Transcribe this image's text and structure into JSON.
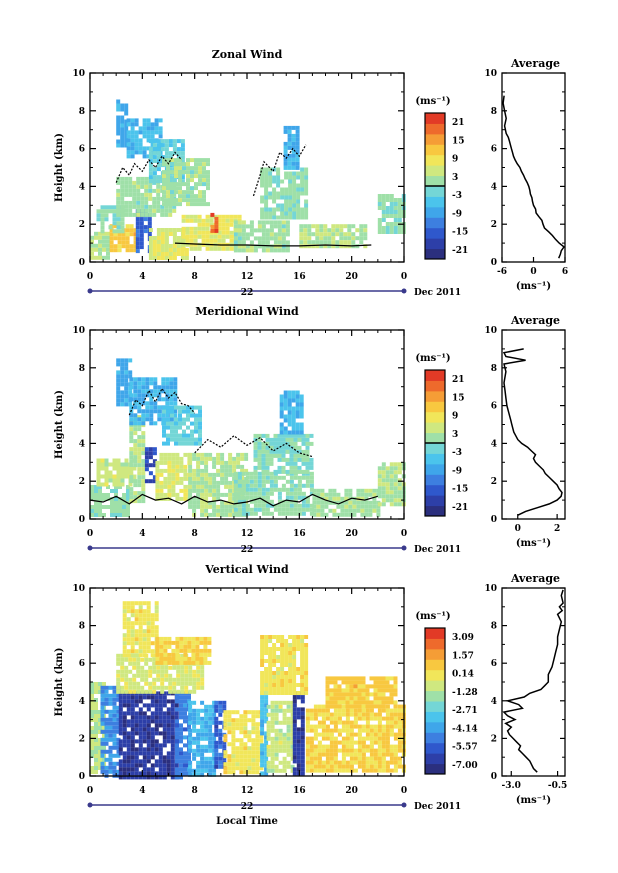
{
  "colormap": [
    "#2b2f7e",
    "#2d3fa8",
    "#2f58cc",
    "#3d7fe0",
    "#3fa6ea",
    "#4bc4ec",
    "#74d6d6",
    "#9fe0a8",
    "#cfe880",
    "#f1e65a",
    "#f8c840",
    "#f59d36",
    "#ee6a2c",
    "#e23a26"
  ],
  "chart_data": [
    {
      "id": "zonal",
      "type": "heatmap",
      "title": "Zonal Wind",
      "ylabel": "Height (km)",
      "unit": "(ms⁻¹)",
      "xlim": [
        0,
        24
      ],
      "ylim": [
        0,
        10
      ],
      "xticks": [
        "0",
        "4",
        "8",
        "12",
        "16",
        "20",
        "0"
      ],
      "yticks": [
        "0",
        "2",
        "4",
        "6",
        "8",
        "10"
      ],
      "day_label": "22",
      "month_label": "Dec 2011",
      "colorbar": {
        "ticks": [
          "21",
          "15",
          "9",
          "3",
          "-3",
          "-9",
          "-15",
          "-21"
        ],
        "range": [
          -24,
          24
        ],
        "zero_line": 0
      },
      "regions": [
        {
          "x": [
            0,
            1.5
          ],
          "y": [
            0.2,
            1.6
          ],
          "v": 3
        },
        {
          "x": [
            1.5,
            3.5
          ],
          "y": [
            0.6,
            2.0
          ],
          "v": 12
        },
        {
          "x": [
            3.5,
            4.5
          ],
          "y": [
            0.5,
            2.8
          ],
          "v": -15
        },
        {
          "x": [
            4.5,
            7.5
          ],
          "y": [
            0.3,
            1.8
          ],
          "v": 6
        },
        {
          "x": [
            0.5,
            2.5
          ],
          "y": [
            1.6,
            3.0
          ],
          "v": 0
        },
        {
          "x": [
            2.0,
            6.5
          ],
          "y": [
            2.5,
            4.5
          ],
          "v": 2
        },
        {
          "x": [
            2.0,
            2.8
          ],
          "y": [
            6.2,
            8.6
          ],
          "v": -8
        },
        {
          "x": [
            2.8,
            5.5
          ],
          "y": [
            5.5,
            7.6
          ],
          "v": -6
        },
        {
          "x": [
            4.5,
            7.0
          ],
          "y": [
            4.2,
            6.5
          ],
          "v": -3
        },
        {
          "x": [
            5.5,
            9.0
          ],
          "y": [
            3.0,
            5.5
          ],
          "v": 2
        },
        {
          "x": [
            7.0,
            11.5
          ],
          "y": [
            0.6,
            2.5
          ],
          "v": 7
        },
        {
          "x": [
            9.2,
            9.6
          ],
          "y": [
            1.6,
            2.6
          ],
          "v": 19
        },
        {
          "x": [
            11.0,
            15.0
          ],
          "y": [
            0.6,
            2.2
          ],
          "v": 2
        },
        {
          "x": [
            13.0,
            16.5
          ],
          "y": [
            2.4,
            5.0
          ],
          "v": 1
        },
        {
          "x": [
            14.8,
            16.0
          ],
          "y": [
            5.0,
            7.2
          ],
          "v": -7
        },
        {
          "x": [
            16.0,
            21.0
          ],
          "y": [
            0.8,
            2.0
          ],
          "v": 3
        },
        {
          "x": [
            22.0,
            24.0
          ],
          "y": [
            1.6,
            3.6
          ],
          "v": 1
        }
      ],
      "contours": [
        {
          "x": [
            6.5,
            8,
            10,
            12,
            14,
            16,
            18,
            20,
            21.5
          ],
          "y": [
            1.0,
            0.95,
            0.9,
            0.9,
            0.85,
            0.85,
            0.9,
            0.85,
            0.9
          ]
        },
        {
          "x": [
            2.0,
            2.5,
            3.0,
            3.4,
            4.0,
            4.5,
            5.0,
            5.5,
            6.0,
            6.5,
            7.0
          ],
          "y": [
            4.2,
            5.0,
            4.6,
            5.2,
            4.8,
            5.4,
            5.0,
            5.6,
            5.2,
            5.8,
            5.4
          ]
        },
        {
          "x": [
            12.5,
            13.0,
            13.3,
            14.0,
            14.5,
            15.0,
            15.5,
            16.0,
            16.5
          ],
          "y": [
            3.5,
            4.6,
            5.3,
            4.8,
            5.8,
            5.5,
            6.0,
            5.6,
            6.2
          ]
        }
      ],
      "profile": {
        "xlim": [
          -6,
          6
        ],
        "xticks": [
          "-6",
          "0",
          "6"
        ],
        "title": "Average",
        "unit": "(ms⁻¹)",
        "values": [
          4.8,
          5.1,
          5.3,
          5.8,
          4.9,
          4.2,
          3.6,
          2.9,
          2.1,
          1.8,
          1.6,
          1.0,
          0.5,
          0.4,
          0.0,
          -0.2,
          -0.3,
          -0.6,
          -0.7,
          -0.9,
          -1.2,
          -1.6,
          -1.9,
          -2.3,
          -2.6,
          -3.1,
          -3.5,
          -3.8,
          -4.0,
          -4.2,
          -4.4,
          -4.6,
          -4.8,
          -5.2,
          -5.5,
          -5.2,
          -5.5,
          -5.8,
          -5.6
        ],
        "heights": [
          0.2,
          0.4,
          0.6,
          0.8,
          1.0,
          1.2,
          1.4,
          1.6,
          1.8,
          2.0,
          2.2,
          2.4,
          2.6,
          2.8,
          3.0,
          3.2,
          3.4,
          3.6,
          3.8,
          4.0,
          4.2,
          4.4,
          4.6,
          4.8,
          5.0,
          5.2,
          5.4,
          5.6,
          5.8,
          6.0,
          6.2,
          6.4,
          6.6,
          6.8,
          7.2,
          7.6,
          8.0,
          8.4,
          8.8
        ]
      }
    },
    {
      "id": "meridional",
      "type": "heatmap",
      "title": "Meridional Wind",
      "ylabel": "Height (km)",
      "unit": "(ms⁻¹)",
      "xlim": [
        0,
        24
      ],
      "ylim": [
        0,
        10
      ],
      "xticks": [
        "0",
        "4",
        "8",
        "12",
        "16",
        "20",
        "0"
      ],
      "yticks": [
        "0",
        "2",
        "4",
        "6",
        "8",
        "10"
      ],
      "day_label": "22",
      "month_label": "Dec 2011",
      "colorbar": {
        "ticks": [
          "21",
          "15",
          "9",
          "3",
          "-3",
          "-9",
          "-15",
          "-21"
        ],
        "range": [
          -24,
          24
        ],
        "zero_line": 0
      },
      "regions": [
        {
          "x": [
            0,
            3.0
          ],
          "y": [
            0.2,
            1.8
          ],
          "v": 1
        },
        {
          "x": [
            0.5,
            3.5
          ],
          "y": [
            1.8,
            3.2
          ],
          "v": 5
        },
        {
          "x": [
            3.0,
            4.2
          ],
          "y": [
            1.0,
            5.5
          ],
          "v": 3
        },
        {
          "x": [
            4.2,
            5.0
          ],
          "y": [
            2.0,
            3.8
          ],
          "v": -17
        },
        {
          "x": [
            5.0,
            7.5
          ],
          "y": [
            1.0,
            3.5
          ],
          "v": 6
        },
        {
          "x": [
            2.0,
            3.0
          ],
          "y": [
            6.0,
            8.5
          ],
          "v": -8
        },
        {
          "x": [
            3.0,
            6.5
          ],
          "y": [
            5.0,
            7.5
          ],
          "v": -7
        },
        {
          "x": [
            5.5,
            8.5
          ],
          "y": [
            4.0,
            6.0
          ],
          "v": -3
        },
        {
          "x": [
            7.5,
            12.0
          ],
          "y": [
            0.3,
            3.5
          ],
          "v": 3
        },
        {
          "x": [
            11.0,
            17.0
          ],
          "y": [
            0.2,
            2.5
          ],
          "v": 1
        },
        {
          "x": [
            12.5,
            17.0
          ],
          "y": [
            2.5,
            4.5
          ],
          "v": 0
        },
        {
          "x": [
            14.5,
            16.2
          ],
          "y": [
            4.5,
            6.8
          ],
          "v": -6
        },
        {
          "x": [
            17.0,
            22.0
          ],
          "y": [
            0.3,
            1.6
          ],
          "v": 2
        },
        {
          "x": [
            22.0,
            24.0
          ],
          "y": [
            0.8,
            3.0
          ],
          "v": 3
        }
      ],
      "contours": [
        {
          "x": [
            0.0,
            1.0,
            2.0,
            3.0,
            4.0,
            5.0,
            6.0,
            7.0,
            8.0,
            9.0,
            10.0,
            11.0,
            12.0,
            13.0,
            14.0,
            15.0,
            16.0,
            17.0,
            18.0,
            19.0,
            20.0,
            21.0,
            22.0
          ],
          "y": [
            1.0,
            0.9,
            1.2,
            0.8,
            1.3,
            1.0,
            1.1,
            0.8,
            1.2,
            0.9,
            1.0,
            0.8,
            0.9,
            1.1,
            0.7,
            1.0,
            0.9,
            1.3,
            1.0,
            0.8,
            1.1,
            1.0,
            1.2
          ]
        },
        {
          "x": [
            3.0,
            3.5,
            4.0,
            4.5,
            5.0,
            5.5,
            6.0,
            6.5,
            7.0,
            7.5,
            8.0
          ],
          "y": [
            5.5,
            6.3,
            6.0,
            6.8,
            6.2,
            6.9,
            6.4,
            6.7,
            6.1,
            6.0,
            5.6
          ]
        },
        {
          "x": [
            8.0,
            9.0,
            10.0,
            11.0,
            12.0,
            13.0,
            14.0,
            15.0,
            16.0,
            17.0
          ],
          "y": [
            3.5,
            4.2,
            3.8,
            4.4,
            3.9,
            4.3,
            3.6,
            4.0,
            3.5,
            3.3
          ]
        }
      ],
      "profile": {
        "xlim": [
          -0.8,
          2.4
        ],
        "xticks": [
          "0",
          "2"
        ],
        "title": "Average",
        "unit": "(ms⁻¹)",
        "values": [
          0.0,
          0.4,
          1.0,
          1.6,
          2.0,
          2.2,
          2.25,
          2.1,
          2.0,
          1.8,
          1.6,
          1.4,
          1.3,
          1.1,
          0.9,
          0.8,
          0.9,
          0.7,
          0.5,
          0.2,
          0.0,
          -0.1,
          -0.2,
          -0.25,
          -0.3,
          -0.35,
          -0.4,
          -0.45,
          -0.5,
          -0.55,
          -0.6,
          -0.65,
          -0.7,
          -0.6,
          -0.7,
          0.4,
          -0.6,
          -0.7,
          0.3
        ],
        "heights": [
          0.2,
          0.4,
          0.6,
          0.8,
          1.0,
          1.2,
          1.4,
          1.6,
          1.8,
          2.0,
          2.2,
          2.4,
          2.6,
          2.8,
          3.0,
          3.2,
          3.4,
          3.6,
          3.8,
          4.0,
          4.2,
          4.4,
          4.6,
          4.8,
          5.0,
          5.2,
          5.4,
          5.6,
          5.8,
          6.0,
          6.4,
          6.8,
          7.2,
          7.8,
          8.2,
          8.4,
          8.6,
          8.8,
          9.0
        ]
      }
    },
    {
      "id": "vertical",
      "type": "heatmap",
      "title": "Vertical Wind",
      "ylabel": "Height (km)",
      "xlabel": "Local Time",
      "unit": "(ms⁻¹)",
      "xlim": [
        0,
        24
      ],
      "ylim": [
        0,
        10
      ],
      "xticks": [
        "0",
        "4",
        "8",
        "12",
        "16",
        "20",
        "0"
      ],
      "yticks": [
        "0",
        "2",
        "4",
        "6",
        "8",
        "10"
      ],
      "day_label": "22",
      "month_label": "Dec 2011",
      "colorbar": {
        "ticks": [
          "3.09",
          "1.57",
          "0.14",
          "-1.28",
          "-2.71",
          "-4.14",
          "-5.57",
          "-7.00"
        ],
        "range": [
          -7.6,
          3.7
        ]
      },
      "regions": [
        {
          "x": [
            0,
            1.0
          ],
          "y": [
            0.2,
            5.0
          ],
          "v": -1.0
        },
        {
          "x": [
            0.8,
            2.2
          ],
          "y": [
            0.0,
            4.8
          ],
          "v": -4.5
        },
        {
          "x": [
            2.2,
            6.5
          ],
          "y": [
            0.0,
            4.5
          ],
          "v": -6.6
        },
        {
          "x": [
            6.5,
            7.5
          ],
          "y": [
            0.0,
            4.5
          ],
          "v": -4.8
        },
        {
          "x": [
            7.5,
            9.5
          ],
          "y": [
            0.0,
            4.0
          ],
          "v": -3.6
        },
        {
          "x": [
            9.5,
            10.2
          ],
          "y": [
            0.5,
            4.0
          ],
          "v": -5.5
        },
        {
          "x": [
            2.0,
            8.5
          ],
          "y": [
            4.5,
            6.5
          ],
          "v": -0.6
        },
        {
          "x": [
            2.5,
            5.0
          ],
          "y": [
            6.5,
            9.3
          ],
          "v": 0.0
        },
        {
          "x": [
            5.0,
            9.0
          ],
          "y": [
            6.0,
            7.4
          ],
          "v": 0.6
        },
        {
          "x": [
            10.2,
            13.0
          ],
          "y": [
            0.2,
            3.5
          ],
          "v": 0.1
        },
        {
          "x": [
            13.0,
            13.5
          ],
          "y": [
            0.2,
            4.5
          ],
          "v": -3.3
        },
        {
          "x": [
            13.5,
            15.5
          ],
          "y": [
            0.2,
            4.0
          ],
          "v": -0.8
        },
        {
          "x": [
            15.5,
            16.3
          ],
          "y": [
            0.2,
            4.5
          ],
          "v": -6.5
        },
        {
          "x": [
            13.0,
            16.5
          ],
          "y": [
            4.5,
            7.5
          ],
          "v": 0.1
        },
        {
          "x": [
            16.5,
            24.0
          ],
          "y": [
            0.2,
            3.8
          ],
          "v": 0.5
        },
        {
          "x": [
            18.0,
            23.5
          ],
          "y": [
            3.8,
            5.3
          ],
          "v": 0.8
        }
      ],
      "contours": [],
      "profile": {
        "xlim": [
          -3.5,
          -0.1
        ],
        "xticks": [
          "-3.0",
          "-0.5"
        ],
        "title": "Average",
        "unit": "(ms⁻¹)",
        "values": [
          -1.6,
          -1.8,
          -1.9,
          -2.0,
          -2.2,
          -2.4,
          -2.6,
          -2.5,
          -2.7,
          -2.9,
          -3.1,
          -3.2,
          -3.0,
          -3.3,
          -2.8,
          -3.2,
          -3.4,
          -2.4,
          -2.6,
          -3.2,
          -2.3,
          -2.0,
          -1.4,
          -1.2,
          -1.0,
          -1.0,
          -0.8,
          -0.7,
          -0.6,
          -0.5,
          -0.5,
          -0.4,
          -0.3,
          -0.5,
          -0.25,
          -0.4,
          -0.2,
          -0.3,
          -0.2
        ],
        "heights": [
          0.2,
          0.4,
          0.6,
          0.8,
          1.0,
          1.2,
          1.4,
          1.6,
          1.8,
          2.0,
          2.2,
          2.4,
          2.6,
          2.8,
          3.0,
          3.2,
          3.4,
          3.6,
          3.8,
          4.0,
          4.2,
          4.4,
          4.6,
          4.8,
          5.0,
          5.4,
          5.8,
          6.2,
          6.6,
          7.0,
          7.4,
          7.8,
          8.2,
          8.6,
          8.8,
          9.0,
          9.2,
          9.6,
          9.9
        ]
      }
    }
  ]
}
